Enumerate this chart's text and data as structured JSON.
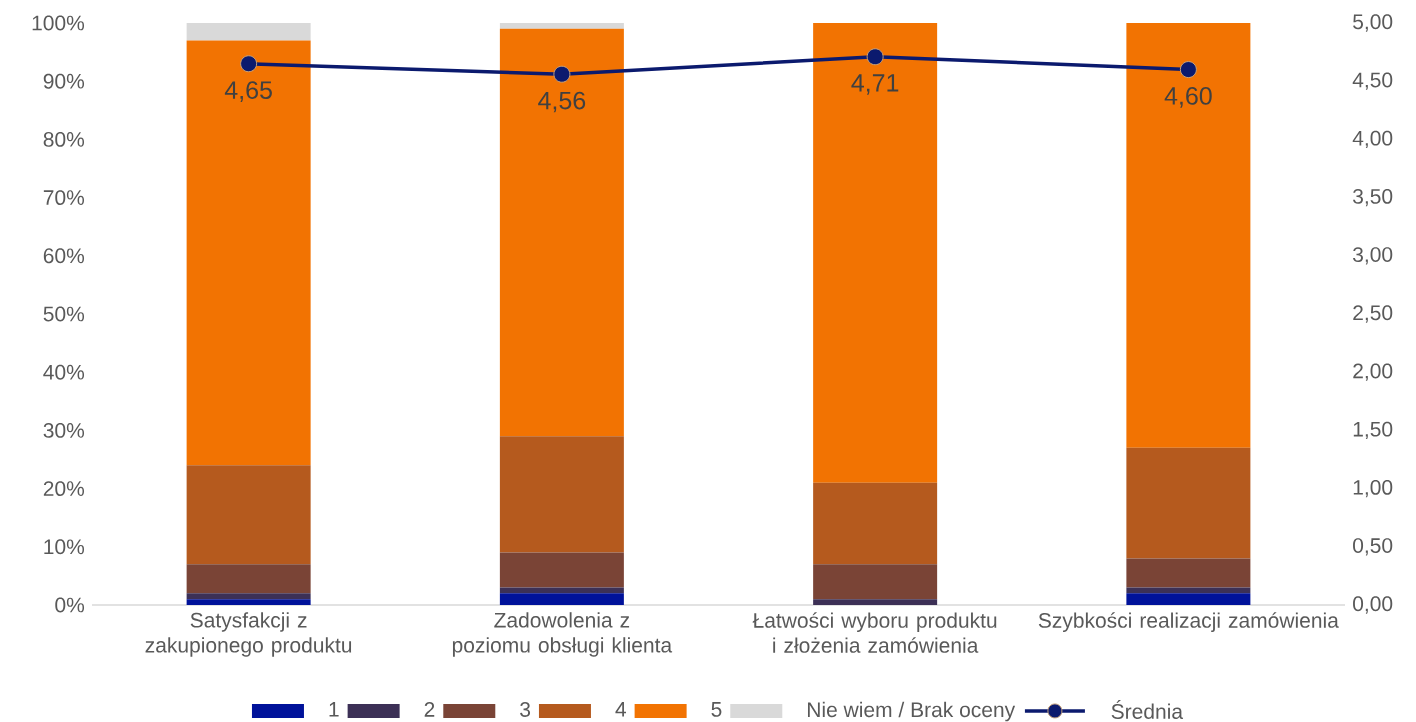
{
  "chart_data": {
    "type": "bar",
    "stacked": true,
    "legend": "bottom",
    "categories": [
      "Satysfakcji z zakupionego produktu",
      "Zadowolenia z poziomu obsługi klienta",
      "Łatwości wyboru produktu i złożenia zamówienia",
      "Szybkości realizacji zamówienia"
    ],
    "ylim": [
      0,
      100
    ],
    "yticks": [
      {
        "value": 0,
        "label": "0%"
      },
      {
        "value": 10,
        "label": "10%"
      },
      {
        "value": 20,
        "label": "20%"
      },
      {
        "value": 30,
        "label": "30%"
      },
      {
        "value": 40,
        "label": "40%"
      },
      {
        "value": 50,
        "label": "50%"
      },
      {
        "value": 60,
        "label": "60%"
      },
      {
        "value": 70,
        "label": "70%"
      },
      {
        "value": 80,
        "label": "80%"
      },
      {
        "value": 90,
        "label": "90%"
      },
      {
        "value": 100,
        "label": "100%"
      }
    ],
    "y2lim": [
      0,
      5
    ],
    "y2ticks": [
      {
        "value": 0,
        "label": "0,00"
      },
      {
        "value": 0.5,
        "label": "0,50"
      },
      {
        "value": 1,
        "label": "1,00"
      },
      {
        "value": 1.5,
        "label": "1,50"
      },
      {
        "value": 2,
        "label": "2,00"
      },
      {
        "value": 2.5,
        "label": "2,50"
      },
      {
        "value": 3,
        "label": "3,00"
      },
      {
        "value": 3.5,
        "label": "3,50"
      },
      {
        "value": 4,
        "label": "4,00"
      },
      {
        "value": 4.5,
        "label": "4,50"
      },
      {
        "value": 5,
        "label": "5,00"
      }
    ],
    "series": [
      {
        "name": "1",
        "type": "bar",
        "color": "#00129a",
        "values": [
          1,
          2,
          0,
          2
        ]
      },
      {
        "name": "2",
        "type": "bar",
        "color": "#3c3056",
        "values": [
          1,
          1,
          1,
          1
        ]
      },
      {
        "name": "3",
        "type": "bar",
        "color": "#7a4436",
        "values": [
          5,
          6,
          6,
          5
        ]
      },
      {
        "name": "4",
        "type": "bar",
        "color": "#b55a1e",
        "values": [
          17,
          20,
          14,
          19
        ]
      },
      {
        "name": "5",
        "type": "bar",
        "color": "#f27302",
        "values": [
          73,
          70,
          79,
          73
        ]
      },
      {
        "name": "Nie wiem / Brak oceny",
        "type": "bar",
        "color": "#d9d9d9",
        "values": [
          3,
          1,
          0,
          0
        ]
      },
      {
        "name": "Średnia",
        "type": "line",
        "axis": "y2",
        "color": "#0b1a6e",
        "marker": "circle",
        "values": [
          4.65,
          4.56,
          4.71,
          4.6
        ],
        "value_labels": [
          "4,65",
          "4,56",
          "4,71",
          "4,60"
        ]
      }
    ]
  }
}
